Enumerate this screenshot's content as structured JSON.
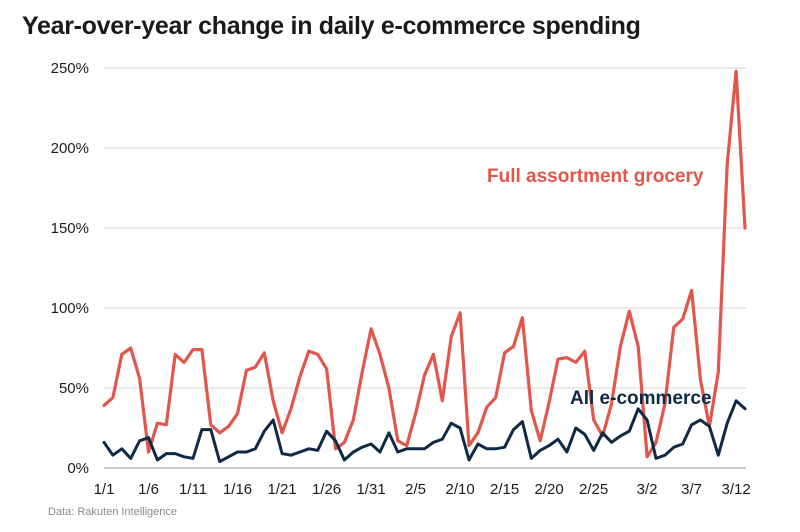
{
  "title": "Year-over-year change in daily e-commerce spending",
  "source": "Data: Rakuten Intelligence",
  "chart_data": {
    "type": "line",
    "title": "Year-over-year change in daily e-commerce spending",
    "xlabel": "",
    "ylabel": "",
    "ylim": [
      0,
      250
    ],
    "y_ticks": [
      0,
      50,
      100,
      150,
      200,
      250
    ],
    "y_tick_labels": [
      "0%",
      "50%",
      "100%",
      "150%",
      "200%",
      "250%"
    ],
    "x_tick_labels": [
      "1/1",
      "1/6",
      "1/11",
      "1/16",
      "1/21",
      "1/26",
      "1/31",
      "2/5",
      "2/10",
      "2/15",
      "2/20",
      "2/25",
      "3/2",
      "3/7",
      "3/12"
    ],
    "x_tick_indices": [
      0,
      5,
      10,
      15,
      20,
      25,
      30,
      35,
      40,
      45,
      50,
      55,
      61,
      66,
      71
    ],
    "grid": true,
    "legend": "direct labels",
    "colors": {
      "grocery": "#e2574c",
      "all": "#0f2a46",
      "grid": "#d6d6d6"
    },
    "series": [
      {
        "name": "Full assortment grocery",
        "values": [
          39,
          44,
          71,
          75,
          56,
          10,
          28,
          27,
          71,
          66,
          74,
          74,
          27,
          22,
          26,
          34,
          61,
          63,
          72,
          42,
          22,
          37,
          57,
          73,
          71,
          62,
          12,
          16,
          30,
          60,
          87,
          71,
          50,
          17,
          14,
          34,
          58,
          71,
          42,
          82,
          97,
          14,
          22,
          38,
          44,
          72,
          76,
          94,
          36,
          17,
          41,
          68,
          69,
          66,
          73,
          30,
          20,
          40,
          76,
          98,
          76,
          7,
          16,
          40,
          88,
          93,
          111,
          55,
          26,
          60,
          190,
          248,
          150
        ]
      },
      {
        "name": "All e-commerce",
        "values": [
          16,
          8,
          12,
          6,
          17,
          19,
          5,
          9,
          9,
          7,
          6,
          24,
          24,
          4,
          7,
          10,
          10,
          12,
          23,
          30,
          9,
          8,
          10,
          12,
          11,
          23,
          17,
          5,
          10,
          13,
          15,
          10,
          22,
          10,
          12,
          12,
          12,
          16,
          18,
          28,
          25,
          5,
          15,
          12,
          12,
          13,
          24,
          29,
          6,
          11,
          14,
          18,
          10,
          25,
          21,
          11,
          22,
          16,
          20,
          23,
          37,
          30,
          6,
          8,
          13,
          15,
          27,
          30,
          26,
          8,
          28,
          42,
          37
        ]
      }
    ]
  }
}
